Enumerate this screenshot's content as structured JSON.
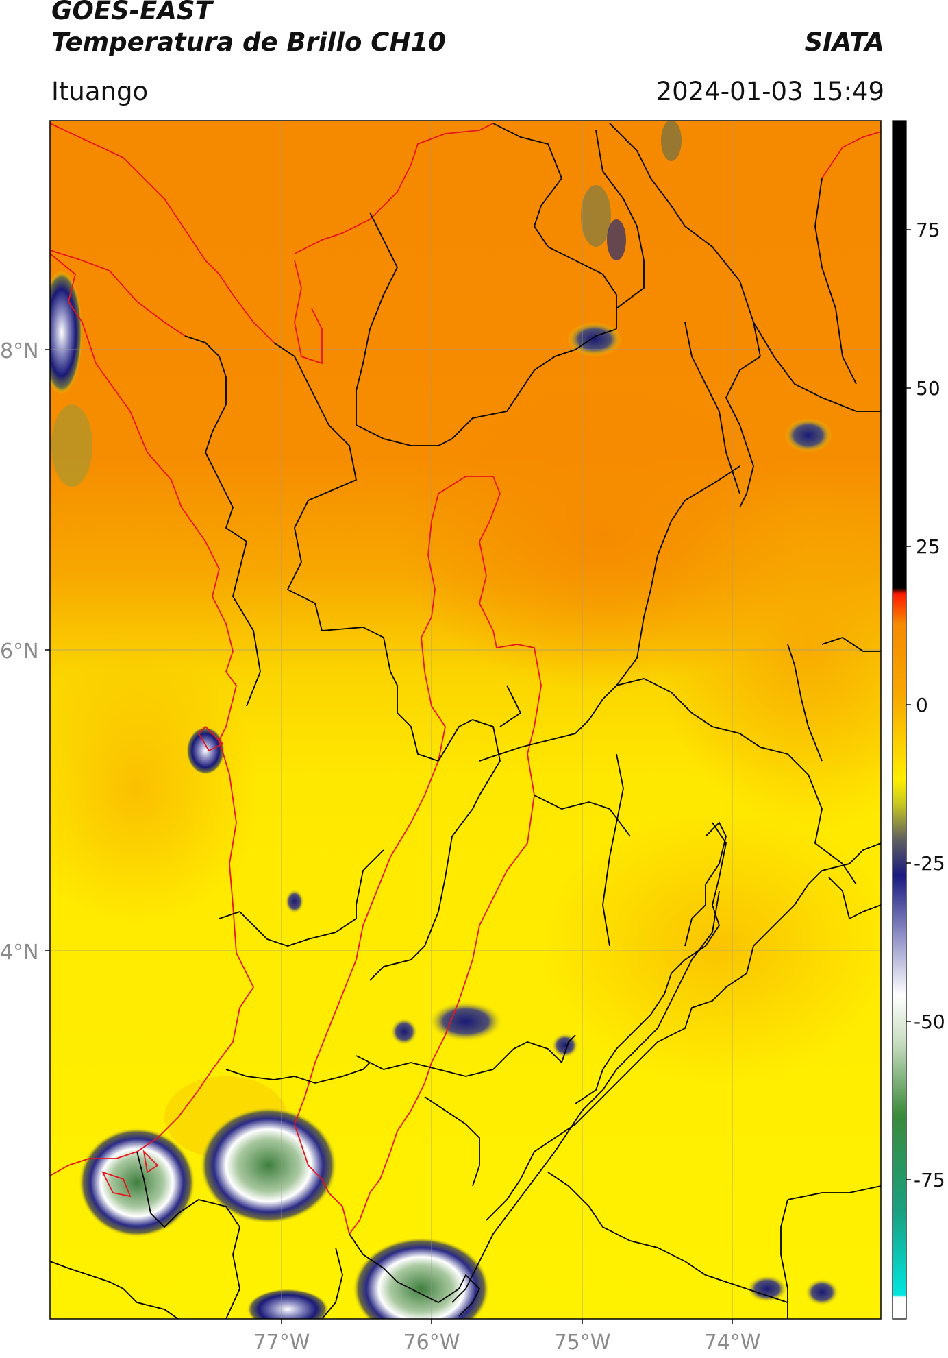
{
  "header": {
    "title_line1": "GOES-EAST",
    "title_line2": "Temperatura de Brillo CH10",
    "agency": "SIATA",
    "location": "Ituango",
    "timestamp": "2024-01-03 15:49"
  },
  "map": {
    "latitude_labels": [
      "8°N",
      "6°N",
      "4°N"
    ],
    "longitude_labels": [
      "77°W",
      "76°W",
      "75°W",
      "74°W"
    ],
    "colors": {
      "warm_orange": "#f58a00",
      "mid_orange": "#f7a500",
      "yellow": "#ffee00",
      "cloud_navy": "#1a1a7a",
      "cloud_white": "#f2f2f2",
      "cloud_green": "#4a8a4a",
      "border": "#000000",
      "region_outline": "#e8141e"
    }
  },
  "colorbar": {
    "ticks": [
      "75",
      "50",
      "25",
      "0",
      "-25",
      "-50",
      "-75"
    ],
    "stops": [
      "#000000",
      "#000000",
      "#ff0000",
      "#f58a00",
      "#ffee00",
      "#2a2a80",
      "#ffffff",
      "#3a8a3a",
      "#00e8e0",
      "#ffffff"
    ]
  }
}
